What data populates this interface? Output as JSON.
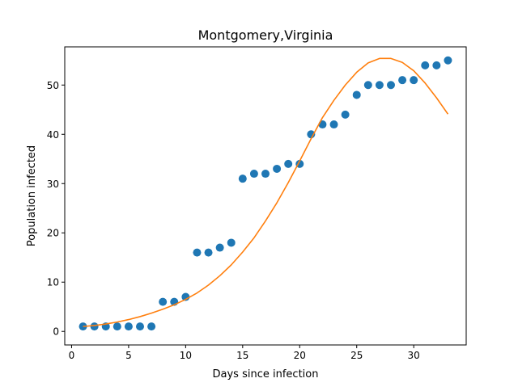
{
  "chart_data": {
    "type": "scatter",
    "title": "Montgomery,Virginia",
    "xlabel": "Days since infection",
    "ylabel": "Population infected",
    "xlim": [
      -0.6,
      34.6
    ],
    "ylim": [
      -2.75,
      57.75
    ],
    "xticks": [
      0,
      5,
      10,
      15,
      20,
      25,
      30
    ],
    "yticks": [
      0,
      10,
      20,
      30,
      40,
      50
    ],
    "grid": false,
    "series": [
      {
        "kind": "scatter",
        "color": "#1f77b4",
        "x": [
          1,
          2,
          3,
          4,
          5,
          6,
          7,
          8,
          9,
          10,
          11,
          12,
          13,
          14,
          15,
          16,
          17,
          18,
          19,
          20,
          21,
          22,
          23,
          24,
          25,
          26,
          27,
          28,
          29,
          30,
          31,
          32,
          33
        ],
        "y": [
          1,
          1,
          1,
          1,
          1,
          1,
          1,
          6,
          6,
          7,
          16,
          16,
          17,
          18,
          31,
          32,
          32,
          33,
          34,
          34,
          40,
          42,
          42,
          44,
          48,
          50,
          50,
          50,
          51,
          51,
          54,
          54,
          55
        ]
      },
      {
        "kind": "line",
        "color": "#ff7f0e",
        "x": [
          1,
          2,
          3,
          4,
          5,
          6,
          7,
          8,
          9,
          10,
          11,
          12,
          13,
          14,
          15,
          16,
          17,
          18,
          19,
          20,
          21,
          22,
          23,
          24,
          25,
          26,
          27,
          28,
          29,
          30,
          31,
          32,
          33
        ],
        "y": [
          1.0,
          1.2,
          1.5,
          1.9,
          2.4,
          3.0,
          3.7,
          4.5,
          5.4,
          6.5,
          7.8,
          9.4,
          11.3,
          13.5,
          16.1,
          19.0,
          22.4,
          26.1,
          30.2,
          34.6,
          39.1,
          43.4,
          46.9,
          50.0,
          52.6,
          54.5,
          55.4,
          55.4,
          54.6,
          52.9,
          50.4,
          47.4,
          44.1
        ]
      }
    ]
  }
}
